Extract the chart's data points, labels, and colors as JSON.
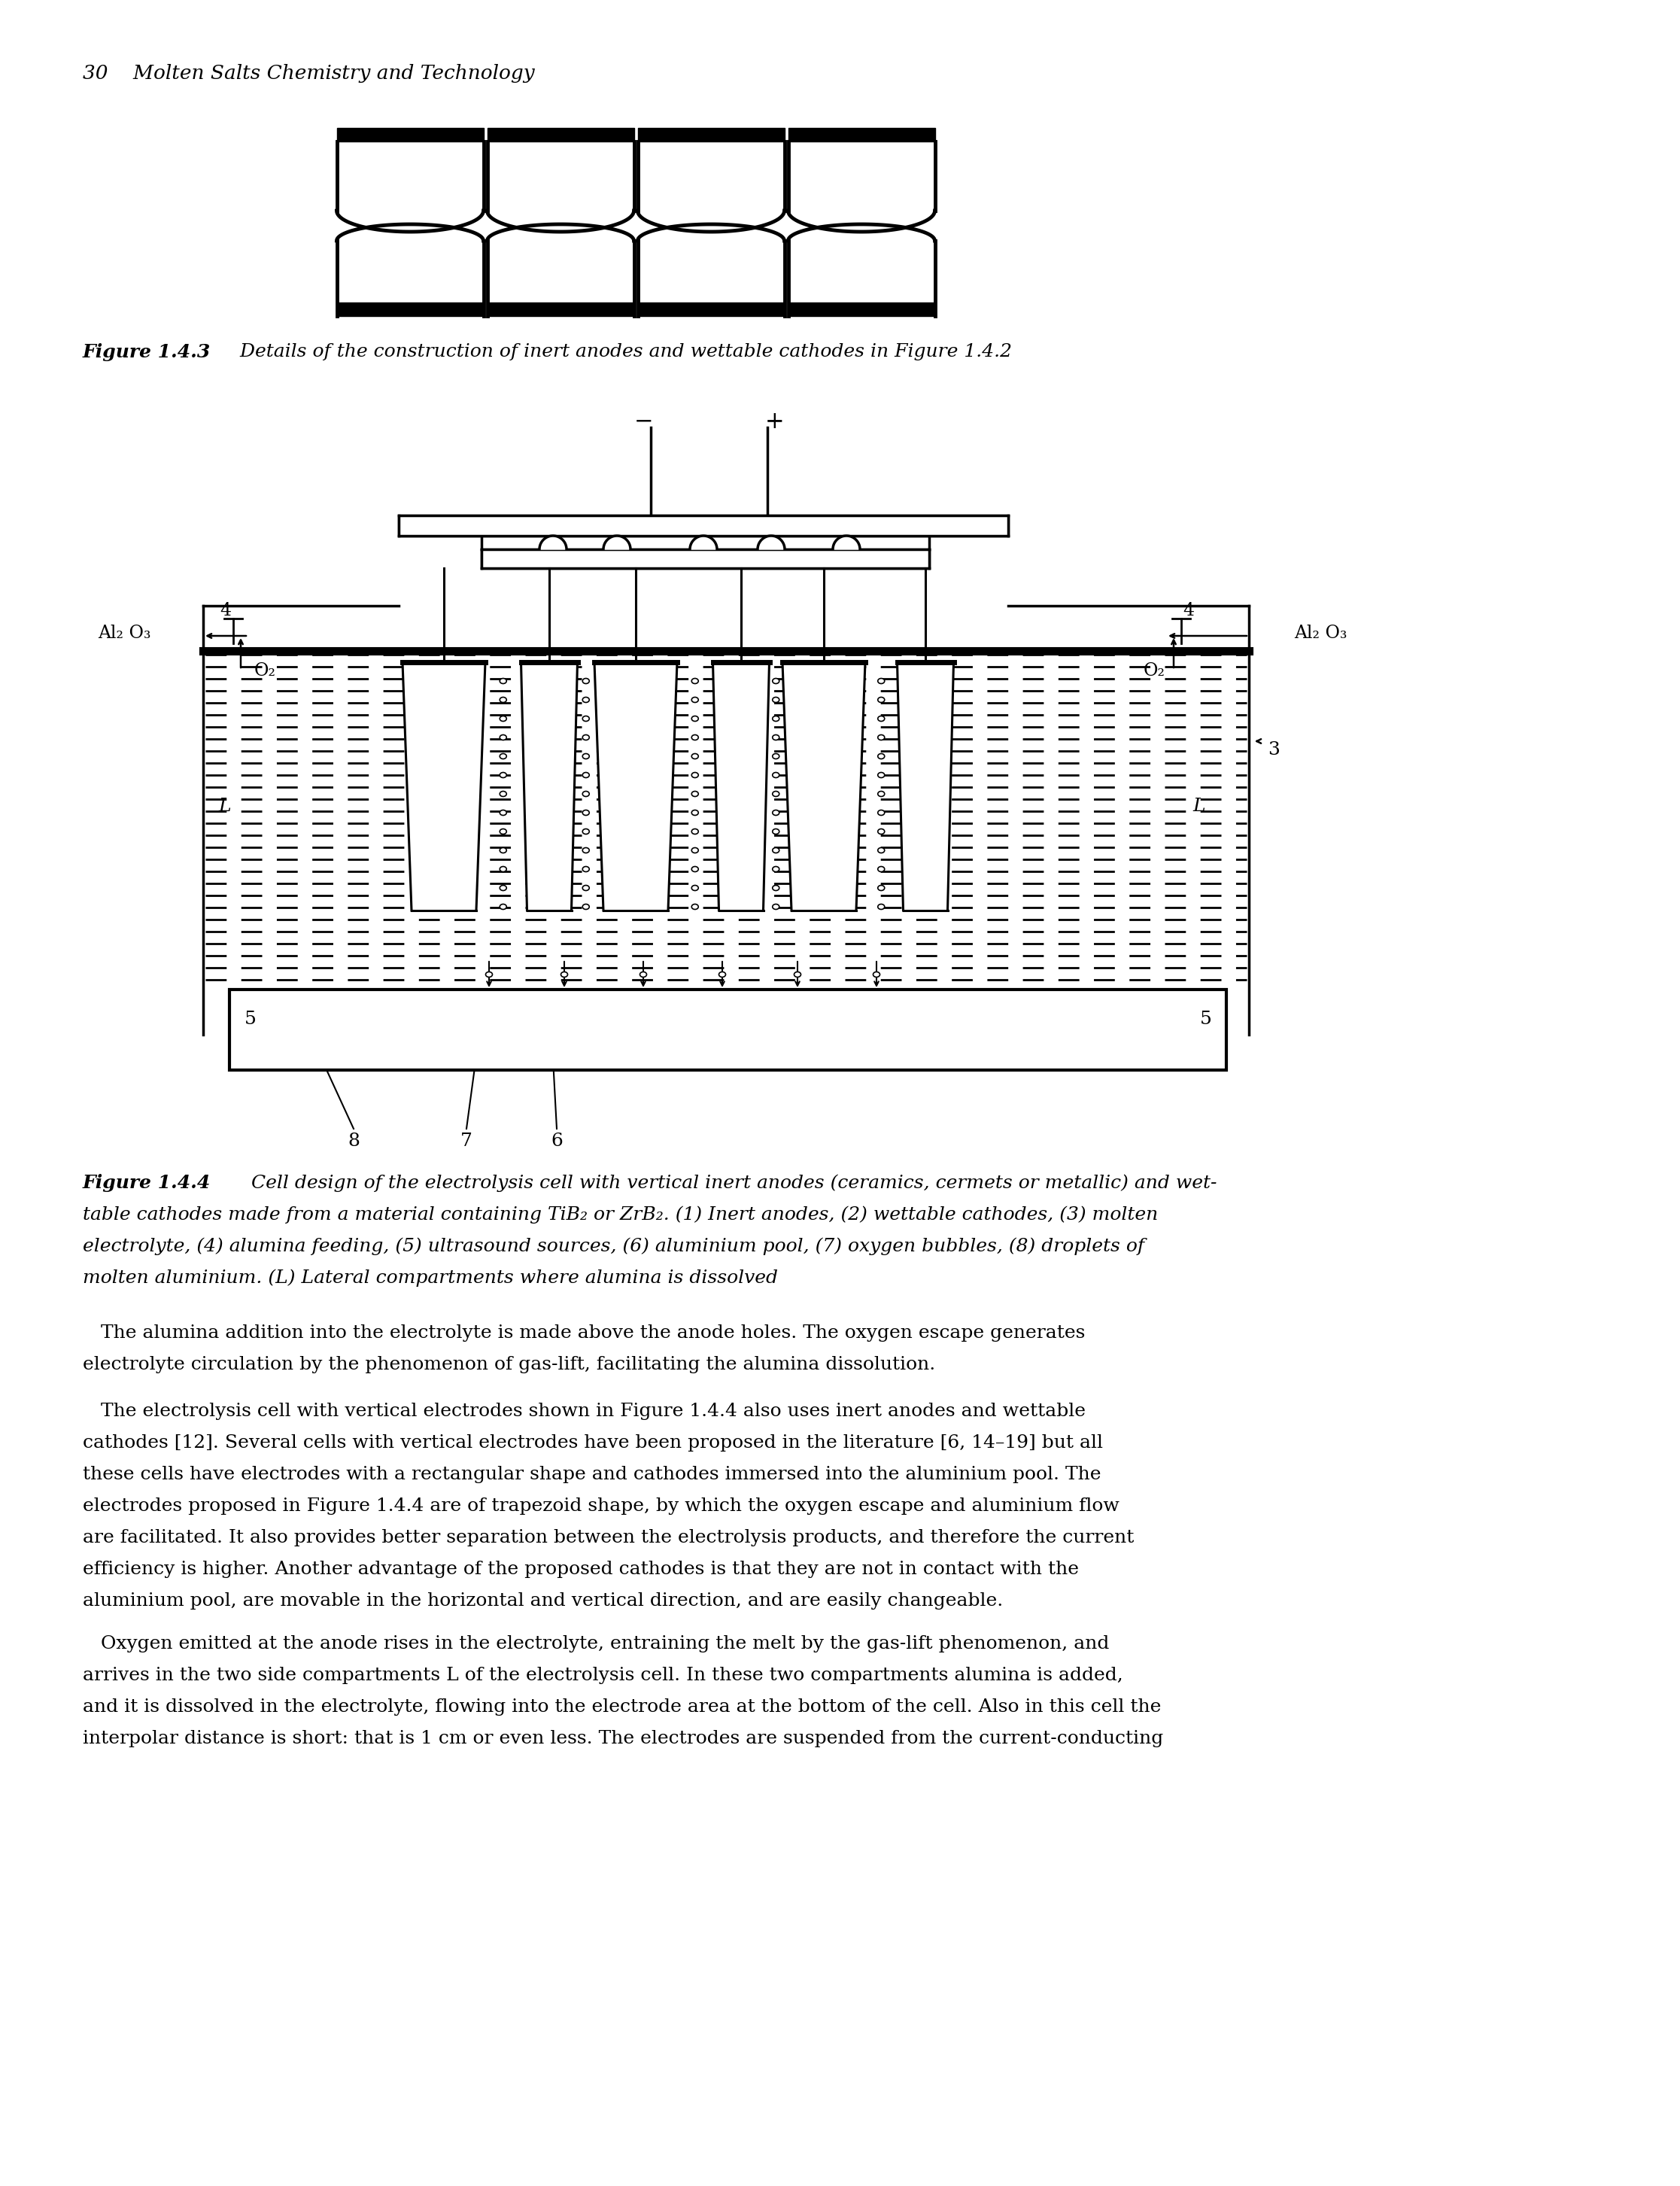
{
  "page_header": "30    Molten Salts Chemistry and Technology",
  "bg_color": "#ffffff",
  "text_color": "#000000",
  "fig143_bold": "Figure 1.4.3",
  "fig143_rest": "   Details of the construction of inert anodes and wettable cathodes in Figure 1.4.2",
  "fig144_bold": "Figure 1.4.4",
  "fig144_rest": "   Cell design of the electrolysis cell with vertical inert anodes (ceramics, cermets or metallic) and wet-",
  "fig144_line2": "table cathodes made from a material containing TiB₂ or ZrB₂. (1) Inert anodes, (2) wettable cathodes, (3) molten",
  "fig144_line3": "electrolyte, (4) alumina feeding, (5) ultrasound sources, (6) aluminium pool, (7) oxygen bubbles, (8) droplets of",
  "fig144_line4": "molten aluminium. (L) Lateral compartments where alumina is dissolved",
  "body_para1_line1": "   The alumina addition into the electrolyte is made above the anode holes. The oxygen escape generates",
  "body_para1_line2": "electrolyte circulation by the phenomenon of gas-lift, facilitating the alumina dissolution.",
  "body_para2_line1": "   The electrolysis cell with vertical electrodes shown in Figure 1.4.4 also uses inert anodes and wettable",
  "body_para2_line2": "cathodes [12]. Several cells with vertical electrodes have been proposed in the literature [6, 14–19] but all",
  "body_para2_line3": "these cells have electrodes with a rectangular shape and cathodes immersed into the aluminium pool. The",
  "body_para2_line4": "electrodes proposed in Figure 1.4.4 are of trapezoid shape, by which the oxygen escape and aluminium flow",
  "body_para2_line5": "are facilitated. It also provides better separation between the electrolysis products, and therefore the current",
  "body_para2_line6": "efficiency is higher. Another advantage of the proposed cathodes is that they are not in contact with the",
  "body_para2_line7": "aluminium pool, are movable in the horizontal and vertical direction, and are easily changeable.",
  "body_para3_line1": "   Oxygen emitted at the anode rises in the electrolyte, entraining the melt by the gas-lift phenomenon, and",
  "body_para3_line2": "arrives in the two side compartments L of the electrolysis cell. In these two compartments alumina is added,",
  "body_para3_line3": "and it is dissolved in the electrolyte, flowing into the electrode area at the bottom of the cell. Also in this cell the",
  "body_para3_line4": "interpolar distance is short: that is 1 cm or even less. The electrodes are suspended from the current-conducting"
}
